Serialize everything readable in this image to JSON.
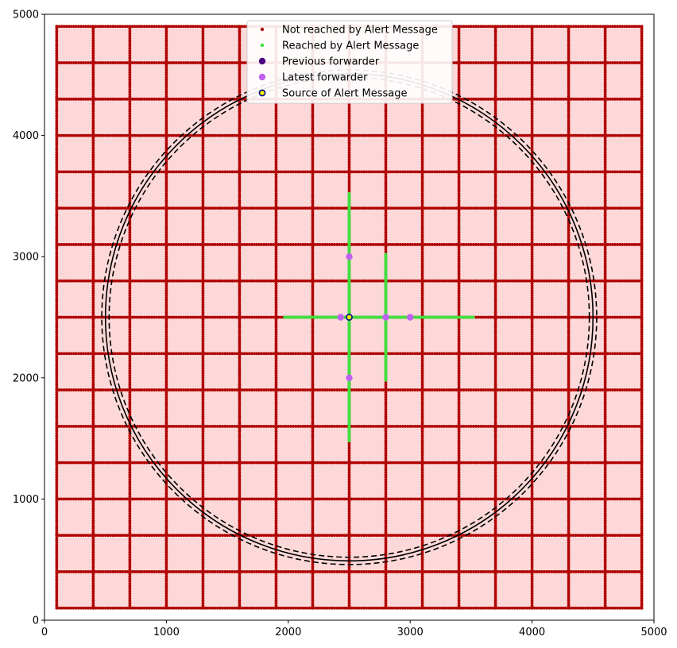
{
  "chart_data": {
    "type": "scatter",
    "title": "",
    "xlabel": "",
    "ylabel": "",
    "xlim": [
      0,
      5000
    ],
    "ylim": [
      0,
      5000
    ],
    "x_ticks": [
      0,
      1000,
      2000,
      3000,
      4000,
      5000
    ],
    "y_ticks": [
      0,
      1000,
      2000,
      3000,
      4000,
      5000
    ],
    "grid": false,
    "legend_position": "top-center",
    "colors": {
      "not_reached": "#b00000",
      "background_fill": "#fdd8d8",
      "reached": "#3ee03e",
      "previous_forwarder": "#4b0082",
      "latest_forwarder": "#c060f0",
      "source_fill": "#f5f000",
      "source_edge": "#00008b",
      "circle": "#000000"
    },
    "road_grid": {
      "min": 100,
      "max": 4900,
      "vertical_road_x": [
        100,
        400,
        700,
        1000,
        1300,
        1600,
        1900,
        2200,
        2500,
        2800,
        3100,
        3400,
        3700,
        4000,
        4300,
        4600,
        4900
      ],
      "horizontal_road_y": [
        100,
        400,
        700,
        1000,
        1300,
        1600,
        1900,
        2200,
        2500,
        2800,
        3100,
        3400,
        3700,
        4000,
        4300,
        4600,
        4900
      ],
      "vehicle_spacing": 20
    },
    "series": [
      {
        "name": "Not reached by Alert Message",
        "marker": "small-dot",
        "description": "vehicles on every road of the grid"
      },
      {
        "name": "Reached by Alert Message",
        "marker": "small-dot",
        "segments": [
          {
            "x": [
              1970,
              3520
            ],
            "y": [
              2500,
              2500
            ]
          },
          {
            "x": [
              2500,
              2500
            ],
            "y": [
              1480,
              3520
            ]
          },
          {
            "x": [
              2800,
              2800
            ],
            "y": [
              1980,
              3020
            ]
          }
        ]
      },
      {
        "name": "Previous forwarder",
        "marker": "dot",
        "points": []
      },
      {
        "name": "Latest forwarder",
        "marker": "dot",
        "points": [
          {
            "x": 2500,
            "y": 3000
          },
          {
            "x": 2500,
            "y": 2000
          },
          {
            "x": 2430,
            "y": 2500
          },
          {
            "x": 2800,
            "y": 2500
          },
          {
            "x": 3000,
            "y": 2500
          }
        ]
      },
      {
        "name": "Source of Alert Message",
        "marker": "dot-outlined",
        "points": [
          {
            "x": 2500,
            "y": 2500
          }
        ]
      }
    ],
    "circles": [
      {
        "cx": 2500,
        "cy": 2500,
        "r": 1970,
        "style": "dashed"
      },
      {
        "cx": 2500,
        "cy": 2500,
        "r": 2000,
        "style": "solid"
      },
      {
        "cx": 2500,
        "cy": 2500,
        "r": 2030,
        "style": "dashed"
      }
    ],
    "legend": [
      "Not reached by Alert Message",
      "Reached by Alert Message",
      "Previous forwarder",
      "Latest forwarder",
      "Source of Alert Message"
    ]
  }
}
